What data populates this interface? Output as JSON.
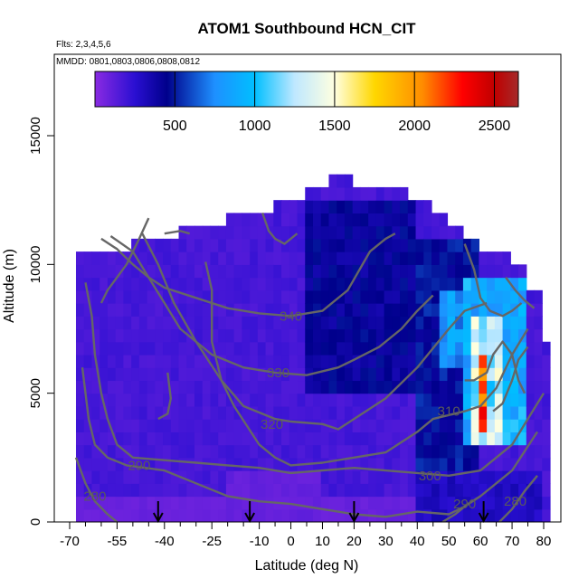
{
  "chart_data": {
    "type": "heatmap",
    "title": "ATOM1 Southbound HCN_CIT",
    "subtitle_flights": "Flts: 2,3,4,5,6",
    "subtitle_dates": "MMDD: 0801,0803,0806,0808,0812",
    "xlabel": "Latitude (deg N)",
    "ylabel": "Altitude (m)",
    "xlim": [
      -70,
      80
    ],
    "ylim": [
      0,
      17500
    ],
    "x_major_ticks": [
      -70,
      -55,
      -40,
      -25,
      -10,
      0,
      10,
      20,
      30,
      40,
      50,
      60,
      70,
      80
    ],
    "x_minor_ticks": [
      -65,
      -60,
      -50,
      -45,
      -35,
      -30,
      -20,
      -15,
      -5,
      5,
      15,
      25,
      35,
      45,
      55,
      65,
      75
    ],
    "y_ticks": [
      0,
      5000,
      10000,
      15000
    ],
    "colorbar": {
      "range": [
        0,
        2650
      ],
      "tick_values": [
        500,
        1000,
        1500,
        2000,
        2500
      ],
      "tick_labels": [
        "500",
        "1000",
        "1500",
        "2000",
        "2500"
      ],
      "stops": [
        {
          "v": 0,
          "color": "#8a2be2"
        },
        {
          "v": 250,
          "color": "#2a0fd2"
        },
        {
          "v": 450,
          "color": "#00008b"
        },
        {
          "v": 750,
          "color": "#1e90ff"
        },
        {
          "v": 1000,
          "color": "#00bfff"
        },
        {
          "v": 1250,
          "color": "#bfe8ff"
        },
        {
          "v": 1500,
          "color": "#ffffe0"
        },
        {
          "v": 1750,
          "color": "#ffd700"
        },
        {
          "v": 2050,
          "color": "#ff8c00"
        },
        {
          "v": 2300,
          "color": "#ff0000"
        },
        {
          "v": 2500,
          "color": "#c00000"
        },
        {
          "v": 2650,
          "color": "#a52a2a"
        }
      ]
    },
    "heatmap": {
      "x_bin_deg": 2.5,
      "y_bin_m": 500,
      "background_value": 180,
      "top_profile": [
        {
          "lat": -68,
          "top": 10500
        },
        {
          "lat": -52,
          "top": 10500
        },
        {
          "lat": -50,
          "top": 11000
        },
        {
          "lat": -36,
          "top": 11500
        },
        {
          "lat": -20,
          "top": 12000
        },
        {
          "lat": -5,
          "top": 12500
        },
        {
          "lat": 5,
          "top": 13000
        },
        {
          "lat": 13,
          "top": 13500
        },
        {
          "lat": 20,
          "top": 13000
        },
        {
          "lat": 37,
          "top": 12500
        },
        {
          "lat": 45,
          "top": 12000
        },
        {
          "lat": 50,
          "top": 11500
        },
        {
          "lat": 55,
          "top": 11000
        },
        {
          "lat": 60,
          "top": 10500
        },
        {
          "lat": 70,
          "top": 10000
        },
        {
          "lat": 75,
          "top": 9000
        },
        {
          "lat": 80,
          "top": 7000
        }
      ],
      "features": [
        {
          "lat_min": 5,
          "lat_max": 40,
          "alt_min": 5000,
          "alt_max": 12500,
          "value": 420
        },
        {
          "lat_min": 40,
          "lat_max": 60,
          "alt_min": 1000,
          "alt_max": 11000,
          "value": 480
        },
        {
          "lat_min": 48,
          "lat_max": 58,
          "alt_min": 6000,
          "alt_max": 9000,
          "value": 800
        },
        {
          "lat_min": 55,
          "lat_max": 75,
          "alt_min": 3000,
          "alt_max": 9500,
          "value": 900
        },
        {
          "lat_min": 58,
          "lat_max": 68,
          "alt_min": 3000,
          "alt_max": 8000,
          "value": 1300
        },
        {
          "lat_min": 60,
          "lat_max": 63,
          "alt_min": 3500,
          "alt_max": 6500,
          "value": 2450
        },
        {
          "lat_min": 60,
          "lat_max": 62,
          "alt_min": 4000,
          "alt_max": 6000,
          "value": 2050
        },
        {
          "lat_min": 63,
          "lat_max": 65,
          "alt_min": 3500,
          "alt_max": 6500,
          "value": 1100
        },
        {
          "lat_min": -68,
          "lat_max": 80,
          "alt_min": 0,
          "alt_max": 1000,
          "value": 90
        },
        {
          "lat_min": -20,
          "lat_max": 10,
          "alt_min": 0,
          "alt_max": 2000,
          "value": 100
        },
        {
          "lat_min": 40,
          "lat_max": 80,
          "alt_min": 0,
          "alt_max": 2000,
          "value": 300
        }
      ]
    },
    "contours": [
      {
        "label": "340",
        "label_at": {
          "lat": 0,
          "alt": 8000
        },
        "points": [
          [
            -60,
            11000
          ],
          [
            -55,
            10600
          ],
          [
            -50,
            10000
          ],
          [
            -45,
            9500
          ],
          [
            -40,
            9100
          ],
          [
            -30,
            8700
          ],
          [
            -20,
            8300
          ],
          [
            -10,
            8100
          ],
          [
            0,
            8000
          ],
          [
            10,
            8200
          ],
          [
            18,
            9000
          ],
          [
            25,
            10500
          ],
          [
            30,
            11000
          ],
          [
            33,
            11200
          ]
        ]
      },
      {
        "label": "330",
        "label_at": {
          "lat": -4,
          "alt": 5800
        },
        "points": [
          [
            -57,
            11100
          ],
          [
            -50,
            10500
          ],
          [
            -45,
            9500
          ],
          [
            -40,
            8500
          ],
          [
            -35,
            7500
          ],
          [
            -25,
            6500
          ],
          [
            -15,
            6000
          ],
          [
            -5,
            5800
          ],
          [
            5,
            5700
          ],
          [
            15,
            6000
          ],
          [
            20,
            6300
          ],
          [
            28,
            6800
          ],
          [
            35,
            7500
          ],
          [
            40,
            8200
          ],
          [
            45,
            8800
          ]
        ]
      },
      {
        "label": "320",
        "label_at": {
          "lat": -6,
          "alt": 3800
        },
        "points": [
          [
            -47,
            11200
          ],
          [
            -42,
            10000
          ],
          [
            -37,
            8500
          ],
          [
            -30,
            7000
          ],
          [
            -22,
            5500
          ],
          [
            -15,
            4500
          ],
          [
            -5,
            4000
          ],
          [
            0,
            3900
          ],
          [
            10,
            3800
          ],
          [
            15,
            3600
          ],
          [
            20,
            4000
          ],
          [
            30,
            4800
          ],
          [
            40,
            6000
          ],
          [
            50,
            7500
          ],
          [
            55,
            8200
          ],
          [
            62,
            8500
          ]
        ]
      },
      {
        "label": "310",
        "label_at": {
          "lat": 50,
          "alt": 4300
        },
        "points": [
          [
            -27,
            10100
          ],
          [
            -25,
            9000
          ],
          [
            -25,
            7000
          ],
          [
            -22,
            5500
          ],
          [
            -18,
            4500
          ],
          [
            -10,
            3000
          ],
          [
            -5,
            2500
          ],
          [
            0,
            2200
          ],
          [
            10,
            2300
          ],
          [
            20,
            2500
          ],
          [
            30,
            2700
          ],
          [
            40,
            3500
          ],
          [
            45,
            4000
          ],
          [
            55,
            4300
          ],
          [
            60,
            4500
          ],
          [
            65,
            5200
          ],
          [
            70,
            6500
          ],
          [
            75,
            7500
          ]
        ]
      },
      {
        "label": "300",
        "label_at": {
          "lat": 44,
          "alt": 1800
        },
        "points": [
          [
            -65,
            9300
          ],
          [
            -63,
            8000
          ],
          [
            -62,
            6500
          ],
          [
            -60,
            5000
          ],
          [
            -58,
            4000
          ],
          [
            -55,
            3000
          ],
          [
            -50,
            2500
          ],
          [
            -40,
            2400
          ],
          [
            -30,
            2300
          ],
          [
            -20,
            2200
          ],
          [
            -10,
            2100
          ],
          [
            0,
            1900
          ],
          [
            10,
            2000
          ],
          [
            20,
            2100
          ],
          [
            30,
            2000
          ],
          [
            40,
            1900
          ],
          [
            50,
            1800
          ],
          [
            60,
            2000
          ],
          [
            70,
            3000
          ],
          [
            75,
            4000
          ],
          [
            80,
            5000
          ]
        ]
      },
      {
        "label": "290",
        "label_at": {
          "lat": -48,
          "alt": 2200
        },
        "points": [
          [
            -66,
            6000
          ],
          [
            -64,
            4000
          ],
          [
            -62,
            3000
          ],
          [
            -58,
            2500
          ],
          [
            -52,
            2200
          ],
          [
            -40,
            2000
          ],
          [
            -30,
            1500
          ],
          [
            -20,
            1000
          ],
          [
            -10,
            800
          ],
          [
            0,
            700
          ],
          [
            10,
            500
          ],
          [
            20,
            300
          ],
          [
            30,
            200
          ],
          [
            40,
            400
          ],
          [
            50,
            300
          ],
          [
            55,
            600
          ],
          [
            60,
            1000
          ],
          [
            70,
            2000
          ],
          [
            78,
            3500
          ]
        ]
      },
      {
        "label": "280",
        "label_at": {
          "lat": -62,
          "alt": 1000
        },
        "points": [
          [
            -68,
            2500
          ],
          [
            -65,
            1500
          ],
          [
            -62,
            800
          ],
          [
            -58,
            300
          ],
          [
            -55,
            0
          ]
        ]
      },
      {
        "label": "290",
        "label_at": {
          "lat": 55,
          "alt": 700
        },
        "points": [
          [
            48,
            0
          ],
          [
            52,
            300
          ],
          [
            56,
            700
          ],
          [
            60,
            1000
          ]
        ]
      },
      {
        "label": "280",
        "label_at": {
          "lat": 71,
          "alt": 800
        },
        "points": [
          [
            66,
            0
          ],
          [
            70,
            500
          ],
          [
            74,
            1200
          ],
          [
            78,
            1800
          ]
        ]
      },
      {
        "label": "",
        "label_at": null,
        "points": [
          [
            -45,
            11800
          ],
          [
            -48,
            11000
          ],
          [
            -52,
            10000
          ],
          [
            -55,
            9500
          ],
          [
            -58,
            9000
          ],
          [
            -60,
            8500
          ]
        ]
      },
      {
        "label": "",
        "label_at": null,
        "points": [
          [
            -40,
            11200
          ],
          [
            -35,
            11300
          ],
          [
            -32,
            11200
          ]
        ]
      },
      {
        "label": "",
        "label_at": null,
        "points": [
          [
            -9,
            12000
          ],
          [
            -7,
            11300
          ],
          [
            -5,
            11000
          ],
          [
            -2,
            10800
          ],
          [
            2,
            11200
          ]
        ]
      },
      {
        "label": "",
        "label_at": null,
        "points": [
          [
            55,
            10800
          ],
          [
            58,
            9800
          ],
          [
            60,
            8700
          ],
          [
            63,
            8200
          ],
          [
            67,
            8000
          ],
          [
            70,
            8200
          ],
          [
            73,
            8500
          ]
        ]
      },
      {
        "label": "",
        "label_at": null,
        "points": [
          [
            68,
            9500
          ],
          [
            71,
            9000
          ],
          [
            74,
            8600
          ],
          [
            77,
            8300
          ]
        ]
      },
      {
        "label": "",
        "label_at": null,
        "points": [
          [
            55,
            5500
          ],
          [
            58,
            5500
          ],
          [
            62,
            5800
          ],
          [
            64,
            6500
          ],
          [
            67,
            7000
          ],
          [
            70,
            6500
          ],
          [
            72,
            5500
          ],
          [
            74,
            5000
          ]
        ]
      },
      {
        "label": "",
        "label_at": null,
        "points": [
          [
            64,
            4300
          ],
          [
            67,
            4600
          ],
          [
            70,
            5500
          ],
          [
            72,
            6300
          ],
          [
            75,
            6800
          ]
        ]
      },
      {
        "label": "",
        "label_at": null,
        "points": [
          [
            -39,
            5800
          ],
          [
            -38,
            4800
          ],
          [
            -39,
            4200
          ],
          [
            -42,
            4000
          ]
        ]
      }
    ],
    "arrows_lat": [
      -42,
      -13,
      20,
      61
    ]
  }
}
